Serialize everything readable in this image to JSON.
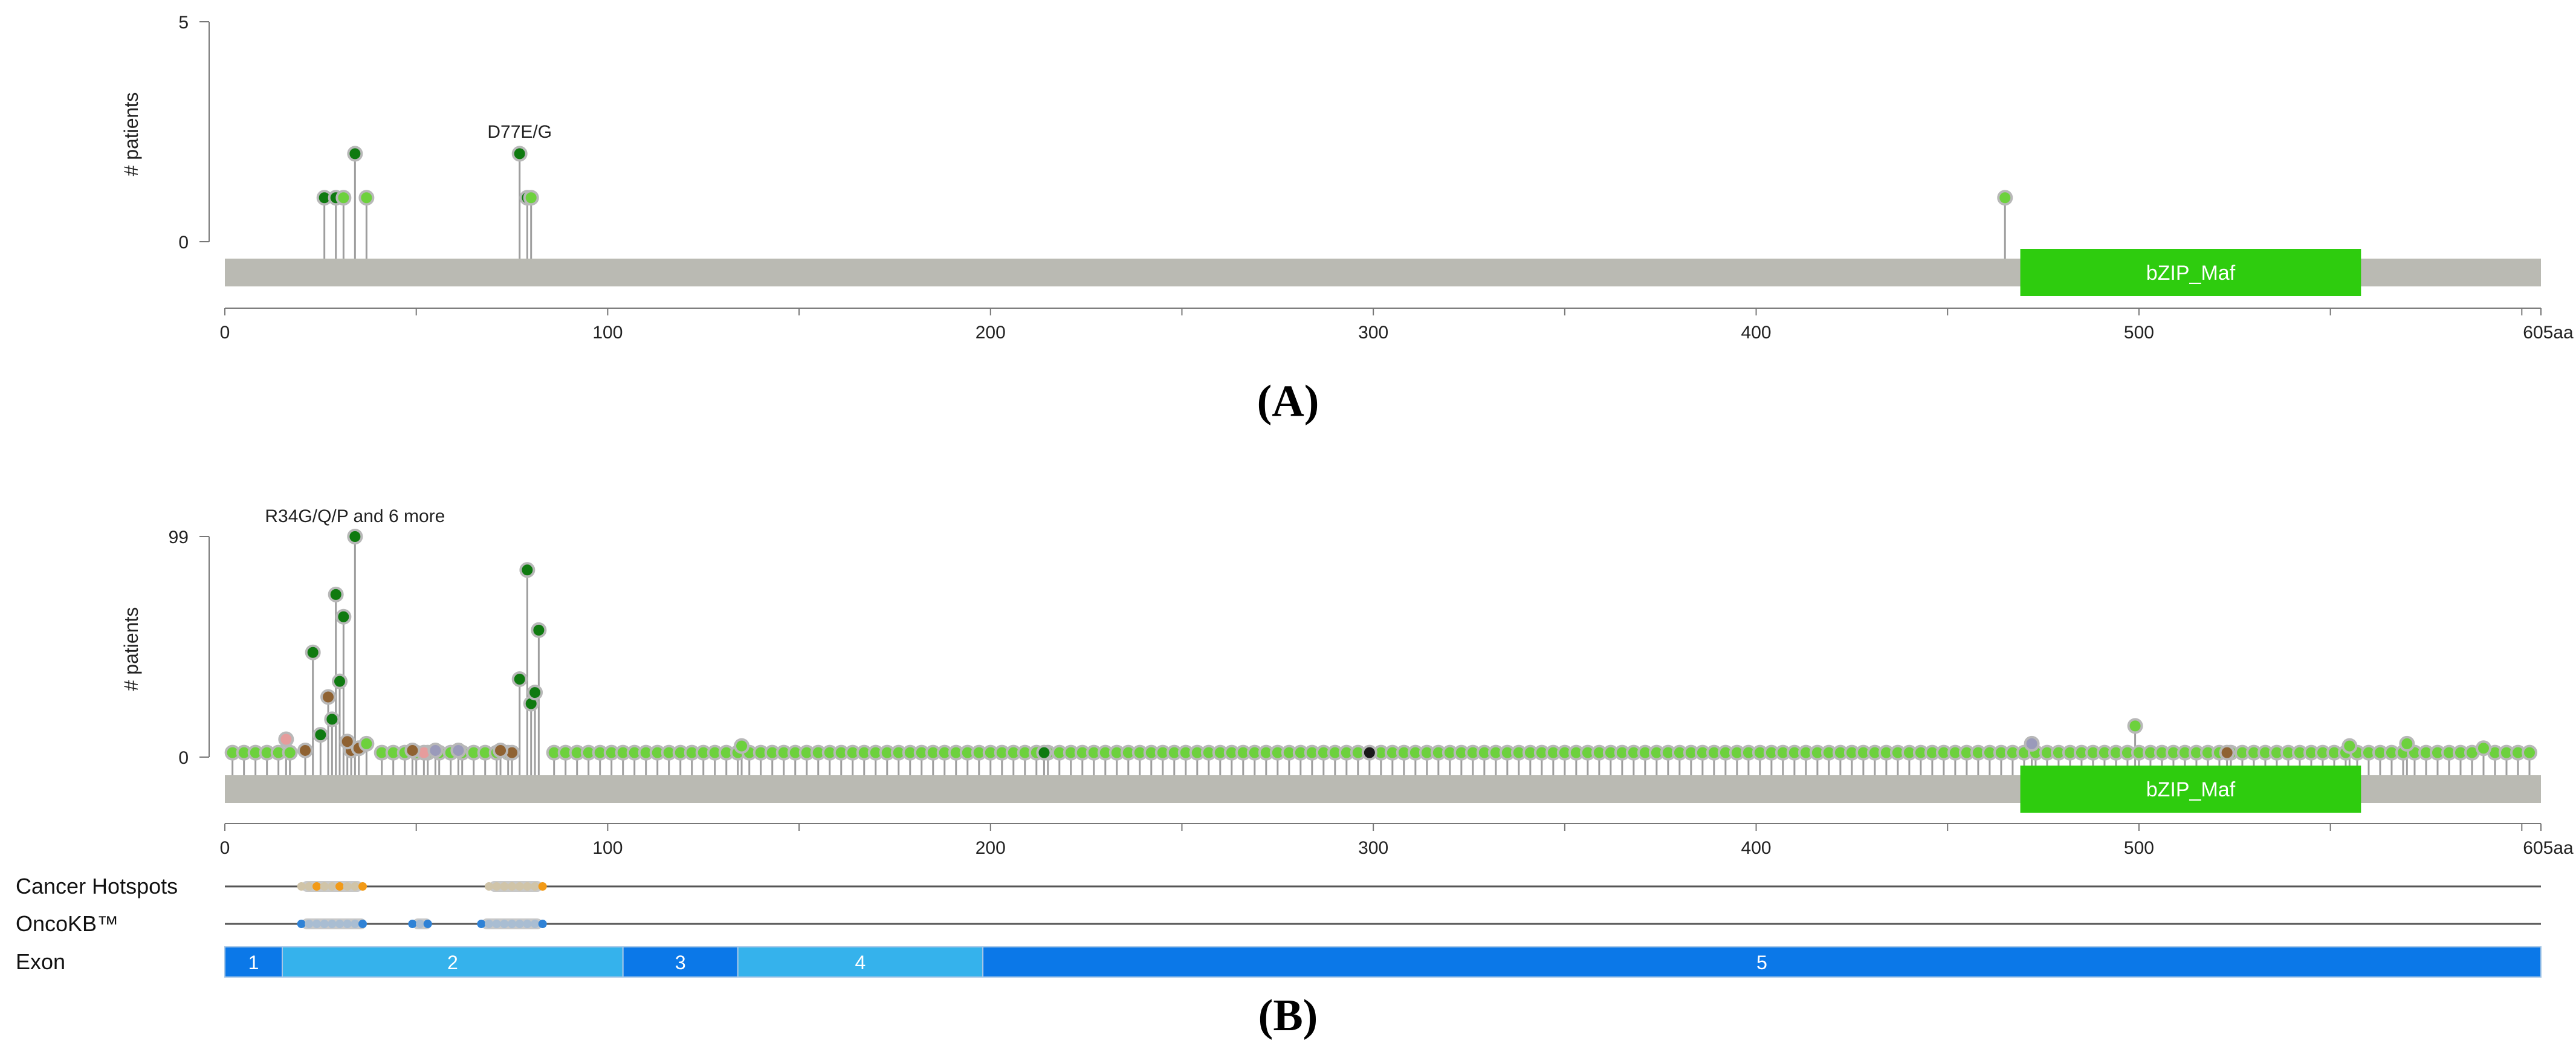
{
  "colors": {
    "backbone": "#babab3",
    "domain": "#2ecc0e",
    "stem": "#9e9e9e",
    "exon_dark": "#0b78e8",
    "exon_light": "#35b2ec",
    "missense": "#6dd13d",
    "truncating": "#1a1a1a",
    "inframe": "#8f6232",
    "splice": "#e69c9c",
    "multi": "#9a9aba",
    "driver": "#0f7a10",
    "hotspot": "#f29a17",
    "oncokb": "#2f82d6"
  },
  "panels": [
    {
      "letter": "(A)",
      "ylabel": "# patients",
      "y_ticks": [
        "5",
        "0"
      ],
      "y_max": 5,
      "annotation": "D77E/G",
      "annotation_pos": 77,
      "x_ticks": [
        "0",
        "100",
        "200",
        "300",
        "400",
        "500",
        "605aa"
      ],
      "domain_label": "bZIP_Maf"
    },
    {
      "letter": "(B)",
      "ylabel": "# patients",
      "y_ticks": [
        "99",
        "0"
      ],
      "y_max": 99,
      "annotation": "R34G/Q/P and 6 more",
      "annotation_pos": 34,
      "x_ticks": [
        "0",
        "100",
        "200",
        "300",
        "400",
        "500",
        "605aa"
      ],
      "domain_label": "bZIP_Maf"
    }
  ],
  "tracks": {
    "hotspots_label": "Cancer Hotspots",
    "oncokb_label": "OncoKB™",
    "exon_label": "Exon"
  },
  "chart_data": [
    {
      "type": "lollipop",
      "title": "",
      "xlabel": "",
      "ylabel": "# patients",
      "xlim": [
        0,
        605
      ],
      "ylim": [
        0,
        5
      ],
      "protein_length": 605,
      "domains": [
        {
          "name": "bZIP_Maf",
          "start": 469,
          "end": 558
        }
      ],
      "mutations": [
        {
          "pos": 26,
          "count": 1,
          "type": "driver"
        },
        {
          "pos": 29,
          "count": 1,
          "type": "driver"
        },
        {
          "pos": 31,
          "count": 1,
          "type": "missense"
        },
        {
          "pos": 34,
          "count": 2,
          "type": "driver"
        },
        {
          "pos": 37,
          "count": 1,
          "type": "missense"
        },
        {
          "pos": 77,
          "count": 2,
          "type": "driver",
          "label": "D77E/G"
        },
        {
          "pos": 79,
          "count": 1,
          "type": "driver"
        },
        {
          "pos": 80,
          "count": 1,
          "type": "missense"
        },
        {
          "pos": 465,
          "count": 1,
          "type": "missense"
        }
      ]
    },
    {
      "type": "lollipop",
      "title": "",
      "xlabel": "",
      "ylabel": "# patients",
      "xlim": [
        0,
        605
      ],
      "ylim": [
        0,
        99
      ],
      "protein_length": 605,
      "domains": [
        {
          "name": "bZIP_Maf",
          "start": 469,
          "end": 558
        }
      ],
      "mutations": [
        {
          "pos": 16,
          "count": 8,
          "type": "splice"
        },
        {
          "pos": 21,
          "count": 3,
          "type": "inframe"
        },
        {
          "pos": 23,
          "count": 47,
          "type": "driver"
        },
        {
          "pos": 25,
          "count": 10,
          "type": "driver"
        },
        {
          "pos": 27,
          "count": 27,
          "type": "inframe"
        },
        {
          "pos": 28,
          "count": 17,
          "type": "driver"
        },
        {
          "pos": 29,
          "count": 73,
          "type": "driver"
        },
        {
          "pos": 30,
          "count": 34,
          "type": "driver"
        },
        {
          "pos": 31,
          "count": 63,
          "type": "driver"
        },
        {
          "pos": 32,
          "count": 7,
          "type": "inframe"
        },
        {
          "pos": 33,
          "count": 3,
          "type": "inframe"
        },
        {
          "pos": 34,
          "count": 99,
          "type": "driver",
          "label": "R34G/Q/P and 6 more"
        },
        {
          "pos": 35,
          "count": 4,
          "type": "inframe"
        },
        {
          "pos": 37,
          "count": 6,
          "type": "missense"
        },
        {
          "pos": 49,
          "count": 3,
          "type": "inframe"
        },
        {
          "pos": 52,
          "count": 2,
          "type": "splice"
        },
        {
          "pos": 55,
          "count": 3,
          "type": "multi"
        },
        {
          "pos": 61,
          "count": 3,
          "type": "multi"
        },
        {
          "pos": 72,
          "count": 3,
          "type": "inframe"
        },
        {
          "pos": 75,
          "count": 2,
          "type": "inframe"
        },
        {
          "pos": 77,
          "count": 35,
          "type": "driver"
        },
        {
          "pos": 79,
          "count": 84,
          "type": "driver"
        },
        {
          "pos": 80,
          "count": 24,
          "type": "driver"
        },
        {
          "pos": 81,
          "count": 29,
          "type": "driver"
        },
        {
          "pos": 82,
          "count": 57,
          "type": "driver"
        },
        {
          "pos": 135,
          "count": 5,
          "type": "missense"
        },
        {
          "pos": 214,
          "count": 2,
          "type": "driver"
        },
        {
          "pos": 299,
          "count": 2,
          "type": "truncating"
        },
        {
          "pos": 472,
          "count": 6,
          "type": "multi"
        },
        {
          "pos": 499,
          "count": 14,
          "type": "missense"
        },
        {
          "pos": 523,
          "count": 2,
          "type": "inframe"
        },
        {
          "pos": 555,
          "count": 5,
          "type": "missense"
        },
        {
          "pos": 570,
          "count": 6,
          "type": "missense"
        },
        {
          "pos": 590,
          "count": 4,
          "type": "missense"
        }
      ],
      "background_mutations": {
        "from": 2,
        "to": 602,
        "step": 3,
        "count": 2,
        "type": "missense"
      },
      "hotspots": [
        {
          "start": 20,
          "end": 36
        },
        {
          "start": 69,
          "end": 83
        }
      ],
      "oncokb": [
        {
          "start": 20,
          "end": 37
        },
        {
          "start": 49,
          "end": 54
        },
        {
          "start": 67,
          "end": 83
        }
      ],
      "exons": [
        {
          "label": "1",
          "start": 0,
          "end": 15
        },
        {
          "label": "2",
          "start": 15,
          "end": 104
        },
        {
          "label": "3",
          "start": 104,
          "end": 134
        },
        {
          "label": "4",
          "start": 134,
          "end": 198
        },
        {
          "label": "5",
          "start": 198,
          "end": 605
        }
      ]
    }
  ]
}
